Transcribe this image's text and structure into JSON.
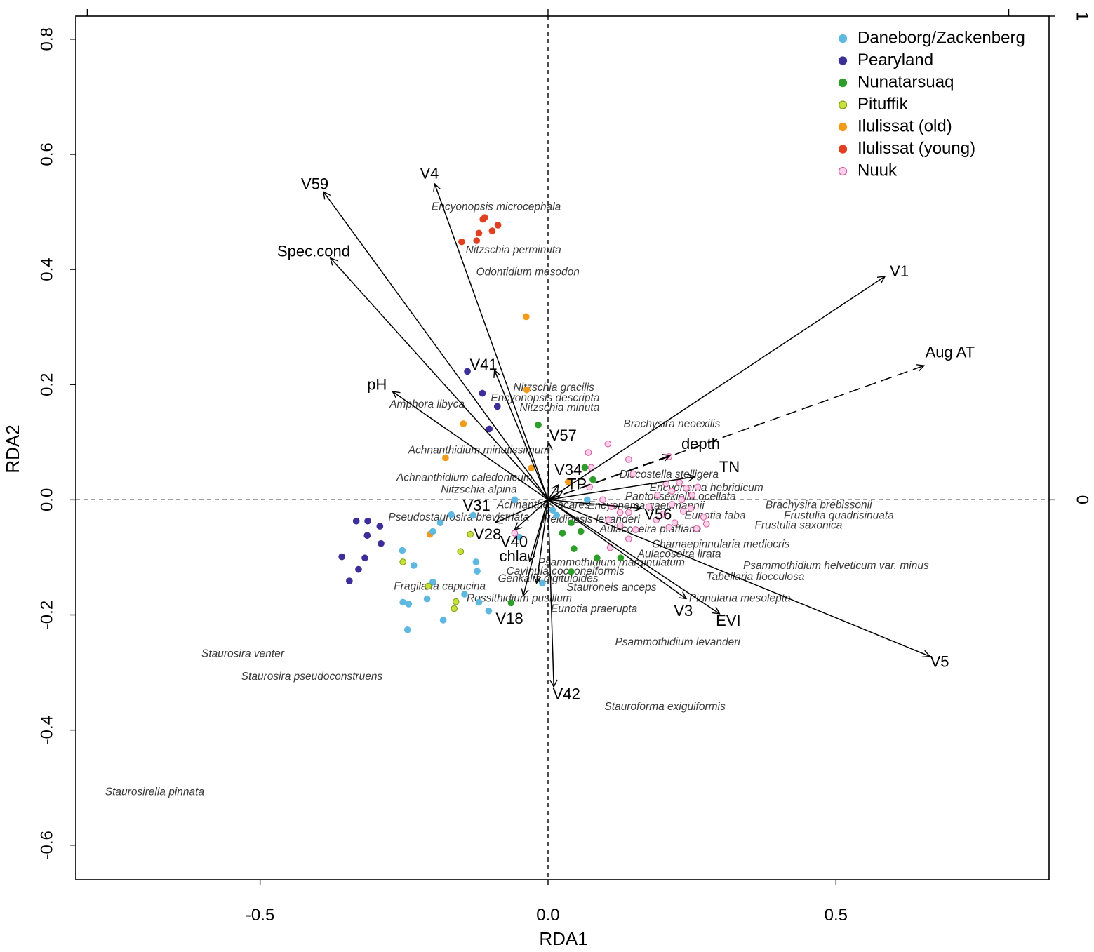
{
  "chart_data": {
    "type": "scatter",
    "subtype": "rda-triplot",
    "xlabel": "RDA1",
    "ylabel": "RDA2",
    "xlim": [
      -0.82,
      0.87
    ],
    "ylim": [
      -0.66,
      0.84
    ],
    "x_ticks": [
      -0.5,
      0.0,
      0.5
    ],
    "x_tick_labels": [
      "-0.5",
      "0.0",
      "0.5"
    ],
    "y_ticks": [
      -0.6,
      -0.4,
      -0.2,
      0.0,
      0.2,
      0.4,
      0.6,
      0.8
    ],
    "y_tick_labels": [
      "-0.6",
      "-0.4",
      "-0.2",
      "0.0",
      "0.2",
      "0.4",
      "0.6",
      "0.8"
    ],
    "top_axis_ticks": [
      -0.8,
      0.0,
      0.8
    ],
    "right_axis_ticks": [
      0.0,
      0.84
    ],
    "right_axis_tick_labels": [
      "0",
      "1"
    ],
    "reference_lines": {
      "x": 0.0,
      "y": 0.0,
      "style": "dashed"
    },
    "legend": {
      "position": "top-right",
      "entries": [
        {
          "name": "Daneborg/Zackenberg",
          "color": "#5fb8e0",
          "edge": "#5fb8e0"
        },
        {
          "name": "Pearyland",
          "color": "#3c2f9a",
          "edge": "#3c2f9a"
        },
        {
          "name": "Nunatarsuaq",
          "color": "#2e9e2a",
          "edge": "#2e9e2a"
        },
        {
          "name": "Pituffik",
          "color": "#c8e03a",
          "edge": "#7fa01a"
        },
        {
          "name": "Ilulissat (old)",
          "color": "#f29b1a",
          "edge": "#f29b1a"
        },
        {
          "name": "Ilulissat (young)",
          "color": "#e0401f",
          "edge": "#e0401f"
        },
        {
          "name": "Nuuk",
          "color": "#fbd0ea",
          "edge": "#d8609f"
        }
      ]
    },
    "vectors": [
      {
        "name": "V59",
        "x": -0.39,
        "y": 0.535,
        "label_x": -0.405,
        "label_y": 0.547,
        "dashed": false
      },
      {
        "name": "V4",
        "x": -0.197,
        "y": 0.549,
        "label_x": -0.206,
        "label_y": 0.565,
        "dashed": false
      },
      {
        "name": "Spec.cond",
        "x": -0.378,
        "y": 0.42,
        "label_x": -0.407,
        "label_y": 0.43,
        "dashed": false
      },
      {
        "name": "V1",
        "x": 0.585,
        "y": 0.388,
        "label_x": 0.61,
        "label_y": 0.395,
        "dashed": false
      },
      {
        "name": "Aug AT",
        "x": 0.653,
        "y": 0.233,
        "label_x": 0.698,
        "label_y": 0.254,
        "dashed": true
      },
      {
        "name": "V41",
        "x": -0.093,
        "y": 0.225,
        "label_x": -0.112,
        "label_y": 0.233,
        "dashed": false
      },
      {
        "name": "pH",
        "x": -0.27,
        "y": 0.188,
        "label_x": -0.297,
        "label_y": 0.198,
        "dashed": false
      },
      {
        "name": "V57",
        "x": 0.002,
        "y": 0.098,
        "label_x": 0.026,
        "label_y": 0.11,
        "dashed": false
      },
      {
        "name": "depth",
        "x": 0.212,
        "y": 0.077,
        "label_x": 0.265,
        "label_y": 0.095,
        "dashed": true
      },
      {
        "name": "V34",
        "x": 0.018,
        "y": 0.026,
        "label_x": 0.035,
        "label_y": 0.05,
        "dashed": false
      },
      {
        "name": "TP",
        "x": 0.025,
        "y": 0.014,
        "label_x": 0.05,
        "label_y": 0.025,
        "dashed": true
      },
      {
        "name": "TN",
        "x": 0.255,
        "y": 0.04,
        "label_x": 0.315,
        "label_y": 0.055,
        "dashed": false
      },
      {
        "name": "V56",
        "x": 0.162,
        "y": -0.015,
        "label_x": 0.191,
        "label_y": -0.027,
        "dashed": false
      },
      {
        "name": "V31",
        "x": -0.092,
        "y": -0.04,
        "label_x": -0.124,
        "label_y": -0.012,
        "dashed": false
      },
      {
        "name": "V28",
        "x": -0.058,
        "y": -0.052,
        "label_x": -0.105,
        "label_y": -0.062,
        "dashed": false
      },
      {
        "name": "V40",
        "x": -0.032,
        "y": -0.107,
        "label_x": -0.059,
        "label_y": -0.075,
        "dashed": false
      },
      {
        "name": "chla",
        "x": -0.02,
        "y": -0.145,
        "label_x": -0.06,
        "label_y": -0.1,
        "dashed": false
      },
      {
        "name": "V18",
        "x": -0.043,
        "y": -0.167,
        "label_x": -0.067,
        "label_y": -0.208,
        "dashed": false
      },
      {
        "name": "V3",
        "x": 0.24,
        "y": -0.172,
        "label_x": 0.235,
        "label_y": -0.195,
        "dashed": false
      },
      {
        "name": "EVI",
        "x": 0.298,
        "y": -0.198,
        "label_x": 0.313,
        "label_y": -0.212,
        "dashed": false
      },
      {
        "name": "V5",
        "x": 0.663,
        "y": -0.272,
        "label_x": 0.68,
        "label_y": -0.283,
        "dashed": false
      },
      {
        "name": "V42",
        "x": 0.01,
        "y": -0.325,
        "label_x": 0.032,
        "label_y": -0.339,
        "dashed": false
      }
    ],
    "species": [
      {
        "name": "Encyonopsis microcephala",
        "x": -0.09,
        "y": 0.508
      },
      {
        "name": "Nitzschia perminuta",
        "x": -0.06,
        "y": 0.433
      },
      {
        "name": "Odontidium mesodon",
        "x": -0.035,
        "y": 0.395
      },
      {
        "name": "Nitzschia gracilis",
        "x": 0.01,
        "y": 0.194
      },
      {
        "name": "Encyonopsis descripta",
        "x": -0.005,
        "y": 0.176
      },
      {
        "name": "Nitzschia minuta",
        "x": 0.02,
        "y": 0.159
      },
      {
        "name": "Amphora libyca",
        "x": -0.21,
        "y": 0.165
      },
      {
        "name": "Brachysira neoexilis",
        "x": 0.215,
        "y": 0.131
      },
      {
        "name": "Achnanthidium minutissimum",
        "x": -0.12,
        "y": 0.085
      },
      {
        "name": "Achnanthidium caledonicum",
        "x": -0.145,
        "y": 0.038
      },
      {
        "name": "Nitzschia alpina",
        "x": -0.12,
        "y": 0.017
      },
      {
        "name": "Discostella stelligera",
        "x": 0.21,
        "y": 0.043
      },
      {
        "name": "Encyonema hebridicum",
        "x": 0.275,
        "y": 0.02
      },
      {
        "name": "Pantocsekiella ocellata",
        "x": 0.23,
        "y": 0.005
      },
      {
        "name": "Brachysira brebissonii",
        "x": 0.47,
        "y": -0.01
      },
      {
        "name": "Encyonema gaeumannii",
        "x": 0.17,
        "y": -0.011
      },
      {
        "name": "Achnanthes acares",
        "x": -0.008,
        "y": -0.01
      },
      {
        "name": "Pseudostaurosira brevistriata",
        "x": -0.155,
        "y": -0.031
      },
      {
        "name": "Eunotia faba",
        "x": 0.29,
        "y": -0.028
      },
      {
        "name": "Frustulia quadrisinuata",
        "x": 0.505,
        "y": -0.028
      },
      {
        "name": "Neidiopsis levanderi",
        "x": 0.075,
        "y": -0.035
      },
      {
        "name": "Aulacoseira pfaffiana",
        "x": 0.178,
        "y": -0.052
      },
      {
        "name": "Frustulia saxonica",
        "x": 0.435,
        "y": -0.045
      },
      {
        "name": "Chamaepinnularia mediocris",
        "x": 0.3,
        "y": -0.078
      },
      {
        "name": "Aulacoseira lirata",
        "x": 0.228,
        "y": -0.095
      },
      {
        "name": "Psammothidium marginulatum",
        "x": 0.11,
        "y": -0.11
      },
      {
        "name": "Psammothidium helveticum var. minus",
        "x": 0.5,
        "y": -0.115
      },
      {
        "name": "Cavinula cocconeiformis",
        "x": 0.03,
        "y": -0.125
      },
      {
        "name": "Genkalia digituloides",
        "x": 0.0,
        "y": -0.138
      },
      {
        "name": "Tabellaria flocculosa",
        "x": 0.36,
        "y": -0.135
      },
      {
        "name": "Stauroneis anceps",
        "x": 0.11,
        "y": -0.153
      },
      {
        "name": "Fragilaria capucina",
        "x": -0.188,
        "y": -0.151
      },
      {
        "name": "Rossithidium pusillum",
        "x": -0.05,
        "y": -0.172
      },
      {
        "name": "Pinnularia mesolepta",
        "x": 0.333,
        "y": -0.172
      },
      {
        "name": "Eunotia praerupta",
        "x": 0.08,
        "y": -0.19
      },
      {
        "name": "Psammothidium levanderi",
        "x": 0.225,
        "y": -0.248
      },
      {
        "name": "Staurosira venter",
        "x": -0.53,
        "y": -0.268
      },
      {
        "name": "Staurosira pseudoconstruens",
        "x": -0.41,
        "y": -0.308
      },
      {
        "name": "Stauroforma exiguiformis",
        "x": 0.203,
        "y": -0.36
      },
      {
        "name": "Staurosirella pinnata",
        "x": -0.683,
        "y": -0.508
      }
    ],
    "sites": [
      {
        "group": "Ilulissat (young)",
        "x": -0.11,
        "y": 0.49
      },
      {
        "group": "Ilulissat (young)",
        "x": -0.113,
        "y": 0.487
      },
      {
        "group": "Ilulissat (young)",
        "x": -0.087,
        "y": 0.477
      },
      {
        "group": "Ilulissat (young)",
        "x": -0.097,
        "y": 0.467
      },
      {
        "group": "Ilulissat (young)",
        "x": -0.12,
        "y": 0.463
      },
      {
        "group": "Ilulissat (young)",
        "x": -0.15,
        "y": 0.448
      },
      {
        "group": "Ilulissat (young)",
        "x": -0.124,
        "y": 0.45
      },
      {
        "group": "Ilulissat (old)",
        "x": -0.038,
        "y": 0.318
      },
      {
        "group": "Ilulissat (old)",
        "x": -0.037,
        "y": 0.191
      },
      {
        "group": "Ilulissat (old)",
        "x": -0.147,
        "y": 0.132
      },
      {
        "group": "Ilulissat (old)",
        "x": -0.178,
        "y": 0.073
      },
      {
        "group": "Ilulissat (old)",
        "x": -0.029,
        "y": 0.055
      },
      {
        "group": "Ilulissat (old)",
        "x": 0.035,
        "y": 0.031
      },
      {
        "group": "Ilulissat (old)",
        "x": -0.205,
        "y": -0.06
      },
      {
        "group": "Pearyland",
        "x": -0.14,
        "y": 0.223
      },
      {
        "group": "Pearyland",
        "x": -0.114,
        "y": 0.185
      },
      {
        "group": "Pearyland",
        "x": -0.088,
        "y": 0.162
      },
      {
        "group": "Pearyland",
        "x": -0.102,
        "y": 0.123
      },
      {
        "group": "Pearyland",
        "x": -0.333,
        "y": -0.037
      },
      {
        "group": "Pearyland",
        "x": -0.313,
        "y": -0.037
      },
      {
        "group": "Pearyland",
        "x": -0.292,
        "y": -0.046
      },
      {
        "group": "Pearyland",
        "x": -0.314,
        "y": -0.062
      },
      {
        "group": "Pearyland",
        "x": -0.29,
        "y": -0.076
      },
      {
        "group": "Pearyland",
        "x": -0.358,
        "y": -0.099
      },
      {
        "group": "Pearyland",
        "x": -0.318,
        "y": -0.101
      },
      {
        "group": "Pearyland",
        "x": -0.329,
        "y": -0.121
      },
      {
        "group": "Pearyland",
        "x": -0.345,
        "y": -0.141
      },
      {
        "group": "Nunatarsuaq",
        "x": -0.017,
        "y": 0.13
      },
      {
        "group": "Nunatarsuaq",
        "x": 0.064,
        "y": 0.056
      },
      {
        "group": "Nunatarsuaq",
        "x": 0.078,
        "y": 0.035
      },
      {
        "group": "Nunatarsuaq",
        "x": 0.025,
        "y": -0.058
      },
      {
        "group": "Nunatarsuaq",
        "x": 0.057,
        "y": -0.055
      },
      {
        "group": "Nunatarsuaq",
        "x": 0.045,
        "y": -0.085
      },
      {
        "group": "Nunatarsuaq",
        "x": 0.085,
        "y": -0.101
      },
      {
        "group": "Nunatarsuaq",
        "x": 0.126,
        "y": -0.101
      },
      {
        "group": "Nunatarsuaq",
        "x": 0.04,
        "y": -0.125
      },
      {
        "group": "Nunatarsuaq",
        "x": -0.064,
        "y": -0.179
      },
      {
        "group": "Nunatarsuaq",
        "x": 0.04,
        "y": -0.04
      },
      {
        "group": "Daneborg/Zackenberg",
        "x": -0.058,
        "y": 0.0
      },
      {
        "group": "Daneborg/Zackenberg",
        "x": 0.068,
        "y": 0.0
      },
      {
        "group": "Daneborg/Zackenberg",
        "x": 0.008,
        "y": -0.018
      },
      {
        "group": "Daneborg/Zackenberg",
        "x": 0.015,
        "y": -0.027
      },
      {
        "group": "Daneborg/Zackenberg",
        "x": -0.168,
        "y": -0.026
      },
      {
        "group": "Daneborg/Zackenberg",
        "x": -0.13,
        "y": -0.027
      },
      {
        "group": "Daneborg/Zackenberg",
        "x": -0.187,
        "y": -0.04
      },
      {
        "group": "Daneborg/Zackenberg",
        "x": -0.2,
        "y": -0.055
      },
      {
        "group": "Daneborg/Zackenberg",
        "x": -0.05,
        "y": -0.065
      },
      {
        "group": "Daneborg/Zackenberg",
        "x": -0.253,
        "y": -0.088
      },
      {
        "group": "Daneborg/Zackenberg",
        "x": -0.233,
        "y": -0.114
      },
      {
        "group": "Daneborg/Zackenberg",
        "x": -0.125,
        "y": -0.108
      },
      {
        "group": "Daneborg/Zackenberg",
        "x": -0.123,
        "y": -0.124
      },
      {
        "group": "Daneborg/Zackenberg",
        "x": -0.2,
        "y": -0.143
      },
      {
        "group": "Daneborg/Zackenberg",
        "x": -0.145,
        "y": -0.164
      },
      {
        "group": "Daneborg/Zackenberg",
        "x": -0.21,
        "y": -0.172
      },
      {
        "group": "Daneborg/Zackenberg",
        "x": -0.252,
        "y": -0.178
      },
      {
        "group": "Daneborg/Zackenberg",
        "x": -0.242,
        "y": -0.181
      },
      {
        "group": "Daneborg/Zackenberg",
        "x": -0.12,
        "y": -0.178
      },
      {
        "group": "Daneborg/Zackenberg",
        "x": -0.103,
        "y": -0.193
      },
      {
        "group": "Daneborg/Zackenberg",
        "x": -0.182,
        "y": -0.209
      },
      {
        "group": "Daneborg/Zackenberg",
        "x": -0.244,
        "y": -0.226
      },
      {
        "group": "Daneborg/Zackenberg",
        "x": -0.01,
        "y": -0.145
      },
      {
        "group": "Pituffik",
        "x": -0.135,
        "y": -0.06
      },
      {
        "group": "Pituffik",
        "x": -0.152,
        "y": -0.09
      },
      {
        "group": "Pituffik",
        "x": -0.252,
        "y": -0.108
      },
      {
        "group": "Pituffik",
        "x": -0.208,
        "y": -0.15
      },
      {
        "group": "Pituffik",
        "x": -0.16,
        "y": -0.177
      },
      {
        "group": "Pituffik",
        "x": -0.163,
        "y": -0.189
      },
      {
        "group": "Nuuk",
        "x": -0.058,
        "y": -0.058
      },
      {
        "group": "Nuuk",
        "x": 0.07,
        "y": 0.082
      },
      {
        "group": "Nuuk",
        "x": 0.104,
        "y": 0.097
      },
      {
        "group": "Nuuk",
        "x": 0.075,
        "y": 0.056
      },
      {
        "group": "Nuuk",
        "x": 0.14,
        "y": 0.07
      },
      {
        "group": "Nuuk",
        "x": 0.21,
        "y": 0.075
      },
      {
        "group": "Nuuk",
        "x": 0.148,
        "y": 0.045
      },
      {
        "group": "Nuuk",
        "x": 0.072,
        "y": 0.022
      },
      {
        "group": "Nuuk",
        "x": 0.095,
        "y": 0.0
      },
      {
        "group": "Nuuk",
        "x": 0.11,
        "y": -0.012
      },
      {
        "group": "Nuuk",
        "x": 0.125,
        "y": -0.022
      },
      {
        "group": "Nuuk",
        "x": 0.14,
        "y": -0.022
      },
      {
        "group": "Nuuk",
        "x": 0.105,
        "y": -0.035
      },
      {
        "group": "Nuuk",
        "x": 0.125,
        "y": -0.045
      },
      {
        "group": "Nuuk",
        "x": 0.152,
        "y": -0.052
      },
      {
        "group": "Nuuk",
        "x": 0.14,
        "y": -0.068
      },
      {
        "group": "Nuuk",
        "x": 0.108,
        "y": -0.083
      },
      {
        "group": "Nuuk",
        "x": 0.205,
        "y": 0.028
      },
      {
        "group": "Nuuk",
        "x": 0.215,
        "y": 0.015
      },
      {
        "group": "Nuuk",
        "x": 0.228,
        "y": 0.03
      },
      {
        "group": "Nuuk",
        "x": 0.24,
        "y": 0.02
      },
      {
        "group": "Nuuk",
        "x": 0.25,
        "y": 0.008
      },
      {
        "group": "Nuuk",
        "x": 0.232,
        "y": 0.0
      },
      {
        "group": "Nuuk",
        "x": 0.215,
        "y": -0.008
      },
      {
        "group": "Nuuk",
        "x": 0.26,
        "y": 0.022
      },
      {
        "group": "Nuuk",
        "x": 0.248,
        "y": -0.015
      },
      {
        "group": "Nuuk",
        "x": 0.235,
        "y": -0.02
      },
      {
        "group": "Nuuk",
        "x": 0.2,
        "y": -0.025
      },
      {
        "group": "Nuuk",
        "x": 0.188,
        "y": -0.035
      },
      {
        "group": "Nuuk",
        "x": 0.22,
        "y": -0.04
      },
      {
        "group": "Nuuk",
        "x": 0.27,
        "y": -0.03
      },
      {
        "group": "Nuuk",
        "x": 0.275,
        "y": -0.042
      },
      {
        "group": "Nuuk",
        "x": 0.258,
        "y": -0.05
      },
      {
        "group": "Nuuk",
        "x": 0.21,
        "y": -0.048
      },
      {
        "group": "Nuuk",
        "x": 0.175,
        "y": -0.012
      },
      {
        "group": "Nuuk",
        "x": 0.19,
        "y": 0.008
      }
    ]
  }
}
